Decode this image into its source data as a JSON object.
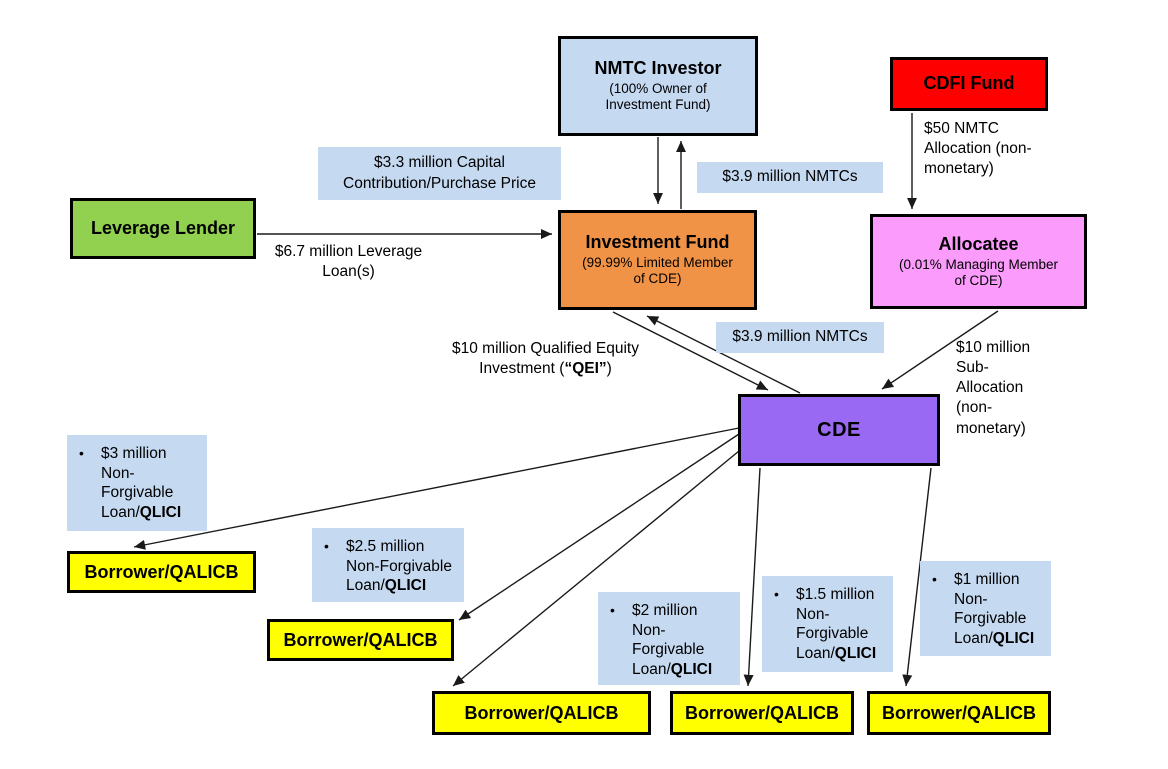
{
  "colors": {
    "light_blue": "#C5D9F1",
    "red": "#FE0000",
    "green": "#92D050",
    "orange": "#F09346",
    "pink": "#FB9BFB",
    "purple": "#9969F3",
    "yellow": "#FFFF00",
    "line": "#1A1A1A"
  },
  "entities": {
    "nmtc_investor": {
      "title": "NMTC Investor",
      "subtitle": "(100% Owner of\nInvestment Fund)"
    },
    "cdfi_fund": {
      "title": "CDFI Fund"
    },
    "leverage_lender": {
      "title": "Leverage Lender"
    },
    "investment_fund": {
      "title": "Investment Fund",
      "subtitle": "(99.99% Limited Member\nof CDE)"
    },
    "allocatee": {
      "title": "Allocatee",
      "subtitle": "(0.01% Managing Member\nof CDE)"
    },
    "cde": {
      "title": "CDE"
    },
    "borrowers": [
      "Borrower/QALICB",
      "Borrower/QALICB",
      "Borrower/QALICB",
      "Borrower/QALICB",
      "Borrower/QALICB"
    ]
  },
  "flows": {
    "capital_contribution": "$3.3 million Capital\nContribution/Purchase Price",
    "nmtcs_to_investor": "$3.9 million NMTCs",
    "nmtc_allocation": "$50 NMTC\nAllocation (non-\nmonetary)",
    "leverage_loan": "$6.7 million Leverage\nLoan(s)",
    "qei": [
      {
        "text": "$10 million Qualified Equity\nInvestment ("
      },
      {
        "text": "“QEI”",
        "bold": true
      },
      {
        "text": ")"
      }
    ],
    "nmtcs_to_fund": "$3.9 million NMTCs",
    "sub_allocation": "$10 million\nSub-\nAllocation\n(non-\nmonetary)",
    "qlici_loans": [
      {
        "bullet": "•",
        "runs": [
          {
            "text": "$3 million\nNon-\nForgivable\nLoan/"
          },
          {
            "text": "QLICI",
            "bold": true
          }
        ]
      },
      {
        "bullet": "•",
        "runs": [
          {
            "text": "$2.5 million\nNon-Forgivable\nLoan/"
          },
          {
            "text": "QLICI",
            "bold": true
          }
        ]
      },
      {
        "bullet": "•",
        "runs": [
          {
            "text": "$2 million\nNon-\nForgivable\nLoan/"
          },
          {
            "text": "QLICI",
            "bold": true
          }
        ]
      },
      {
        "bullet": "•",
        "runs": [
          {
            "text": "$1.5 million\nNon-\nForgivable\nLoan/"
          },
          {
            "text": "QLICI",
            "bold": true
          }
        ]
      },
      {
        "bullet": "•",
        "runs": [
          {
            "text": "$1 million\nNon-\nForgivable\nLoan/"
          },
          {
            "text": "QLICI",
            "bold": true
          }
        ]
      }
    ]
  }
}
